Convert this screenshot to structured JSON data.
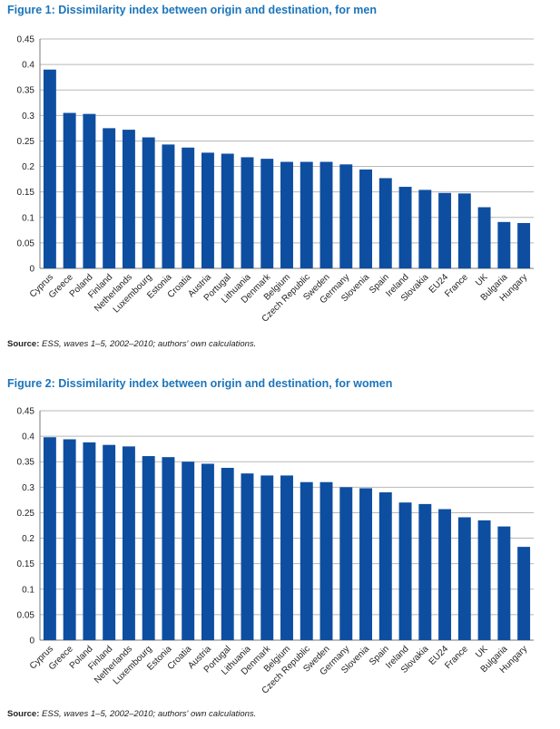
{
  "chart_data": [
    {
      "type": "bar",
      "title": "Figure 1: Dissimilarity index between origin and destination, for men",
      "categories": [
        "Cyprus",
        "Greece",
        "Poland",
        "Finland",
        "Netherlands",
        "Luxembourg",
        "Estonia",
        "Croatia",
        "Austria",
        "Portugal",
        "Lithuania",
        "Denmark",
        "Belgium",
        "Czech Republic",
        "Sweden",
        "Germany",
        "Slovenia",
        "Spain",
        "Ireland",
        "Slovakia",
        "EU24",
        "France",
        "UK",
        "Bulgaria",
        "Hungary"
      ],
      "values": [
        0.39,
        0.305,
        0.303,
        0.275,
        0.272,
        0.257,
        0.243,
        0.237,
        0.227,
        0.225,
        0.218,
        0.215,
        0.209,
        0.209,
        0.209,
        0.204,
        0.194,
        0.177,
        0.16,
        0.154,
        0.148,
        0.147,
        0.12,
        0.091,
        0.089
      ],
      "yticks": [
        "0",
        "0.05",
        "0.1",
        "0.15",
        "0.2",
        "0.25",
        "0.3",
        "0.35",
        "0.4",
        "0.45"
      ],
      "ylim": [
        0,
        0.45
      ],
      "bar_color": "#0d4ea1",
      "source_label": "Source:",
      "source_text": "ESS, waves 1–5, 2002–2010; authors' own calculations."
    },
    {
      "type": "bar",
      "title": "Figure 2: Dissimilarity index between origin and destination, for women",
      "categories": [
        "Cyprus",
        "Greece",
        "Poland",
        "Finland",
        "Netherlands",
        "Luxembourg",
        "Estonia",
        "Croatia",
        "Austria",
        "Portugal",
        "Lithuania",
        "Denmark",
        "Belgium",
        "Czech Republic",
        "Sweden",
        "Germany",
        "Slovenia",
        "Spain",
        "Ireland",
        "Slovakia",
        "EU24",
        "France",
        "UK",
        "Bulgaria",
        "Hungary"
      ],
      "values": [
        0.398,
        0.394,
        0.388,
        0.383,
        0.38,
        0.361,
        0.359,
        0.35,
        0.346,
        0.338,
        0.327,
        0.323,
        0.323,
        0.31,
        0.31,
        0.3,
        0.298,
        0.29,
        0.27,
        0.267,
        0.257,
        0.241,
        0.235,
        0.223,
        0.183
      ],
      "yticks": [
        "0",
        "0.05",
        "0.1",
        "0.15",
        "0.2",
        "0.25",
        "0.3",
        "0.35",
        "0.4",
        "0.45"
      ],
      "ylim": [
        0,
        0.45
      ],
      "bar_color": "#0d4ea1",
      "source_label": "Source:",
      "source_text": "ESS, waves 1–5, 2002–2010; authors' own calculations."
    }
  ]
}
